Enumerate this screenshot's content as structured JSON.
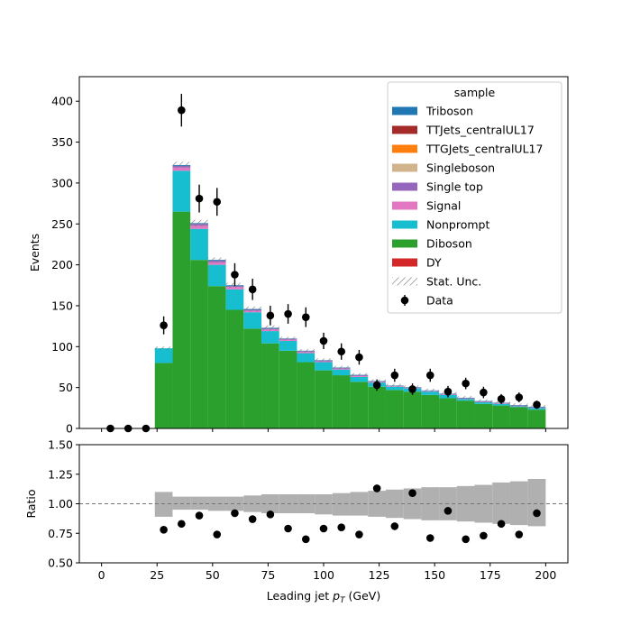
{
  "chart_data": [
    {
      "type": "bar",
      "subtype": "stacked-histogram-with-data-points",
      "xlabel": "Leading jet  p_T (GeV)",
      "ylabel": "Events",
      "xlim": [
        -10,
        210
      ],
      "ylim": [
        0,
        430
      ],
      "xticks": [
        0,
        25,
        50,
        75,
        100,
        125,
        150,
        175,
        200
      ],
      "yticks": [
        0,
        50,
        100,
        150,
        200,
        250,
        300,
        350,
        400
      ],
      "bin_edges": [
        24,
        32,
        40,
        48,
        56,
        64,
        72,
        80,
        88,
        96,
        104,
        112,
        120,
        128,
        136,
        144,
        152,
        160,
        168,
        176,
        184,
        192,
        200
      ],
      "legend": {
        "title": "sample",
        "placement": "top-right",
        "entries": [
          "Triboson",
          "TTJets_centralUL17",
          "TTGJets_centralUL17",
          "Singleboson",
          "Single top",
          "Signal",
          "Nonprompt",
          "Diboson",
          "DY",
          "Stat. Unc.",
          "Data"
        ]
      },
      "series": [
        {
          "name": "DY",
          "color": "#d62728",
          "values": [
            0,
            0,
            0,
            0,
            0,
            0,
            0,
            0,
            0,
            0,
            0,
            0,
            0,
            0,
            0,
            0,
            0,
            0,
            0,
            0,
            0,
            0
          ]
        },
        {
          "name": "Diboson",
          "color": "#2ca02c",
          "values": [
            80,
            265,
            206,
            174,
            145,
            122,
            104,
            95,
            81,
            71,
            65,
            57,
            51,
            47,
            45,
            41,
            37,
            34,
            30,
            28,
            26,
            23
          ]
        },
        {
          "name": "Nonprompt",
          "color": "#17becf",
          "values": [
            18,
            50,
            38,
            26,
            25,
            20,
            15,
            12,
            11,
            10,
            7,
            6,
            5,
            4,
            4,
            4,
            4,
            2,
            2,
            2,
            1,
            2
          ]
        },
        {
          "name": "Signal",
          "color": "#e377c2",
          "values": [
            0,
            4,
            4,
            3,
            3,
            2,
            2,
            1.5,
            1.5,
            1,
            1,
            1,
            1,
            0.5,
            0.5,
            0.5,
            0.5,
            0.5,
            0.5,
            0.5,
            0.5,
            0.5
          ]
        },
        {
          "name": "Single top",
          "color": "#9467bd",
          "values": [
            0,
            2,
            2,
            2,
            1,
            1,
            1,
            1,
            1,
            1,
            1,
            1,
            0.5,
            0.5,
            0.5,
            0.5,
            0.5,
            0.5,
            0.5,
            0.5,
            0.5,
            0.5
          ]
        },
        {
          "name": "Singleboson",
          "color": "#d2b48c",
          "values": [
            0,
            0,
            0,
            0,
            0,
            0,
            0,
            0,
            0,
            0,
            0,
            0,
            0,
            0,
            0,
            0,
            0,
            0,
            0,
            0,
            0,
            0
          ]
        },
        {
          "name": "TTGJets_centralUL17",
          "color": "#ff7f0e",
          "values": [
            0,
            0,
            0,
            0,
            0,
            0,
            0,
            0,
            0,
            0,
            0,
            0,
            0,
            0,
            0,
            0,
            0,
            0,
            0,
            0,
            0,
            0
          ]
        },
        {
          "name": "TTJets_centralUL17",
          "color": "#a52a2a",
          "values": [
            0,
            0,
            0,
            0,
            0,
            0,
            0,
            0,
            0,
            0,
            0,
            0,
            0,
            0,
            0,
            0,
            0,
            0,
            0,
            0,
            0,
            0
          ]
        },
        {
          "name": "Triboson",
          "color": "#1f77b4",
          "values": [
            0,
            1,
            1,
            1,
            1,
            1,
            1,
            0.5,
            0.5,
            0.5,
            0.5,
            0.5,
            0.5,
            0.5,
            0.5,
            0.5,
            0.5,
            0.5,
            0.5,
            0.5,
            0.5,
            0.5
          ]
        }
      ],
      "stat_unc": [
        2,
        4,
        4,
        3,
        3,
        3,
        3,
        2,
        2,
        2,
        2,
        2,
        2,
        2,
        2,
        2,
        2,
        2,
        2,
        2,
        2,
        2
      ],
      "data_points": {
        "name": "Data",
        "x": [
          4,
          12,
          20,
          28,
          36,
          44,
          52,
          60,
          68,
          76,
          84,
          92,
          100,
          108,
          116,
          124,
          132,
          140,
          148,
          156,
          164,
          172,
          180,
          188,
          196
        ],
        "y": [
          0,
          0,
          0,
          126,
          389,
          281,
          277,
          188,
          170,
          138,
          140,
          136,
          107,
          94,
          87,
          53,
          65,
          48,
          65,
          45,
          55,
          44,
          36,
          38,
          29
        ],
        "yerr": [
          0,
          0,
          0,
          11,
          20,
          17,
          17,
          14,
          13,
          12,
          12,
          12,
          10,
          10,
          9,
          7,
          8,
          7,
          8,
          7,
          7,
          7,
          6,
          6,
          5
        ]
      }
    },
    {
      "type": "scatter",
      "subtype": "ratio-panel",
      "xlabel": "Leading jet  p_T (GeV)",
      "ylabel": "Ratio",
      "xlim": [
        -10,
        210
      ],
      "ylim": [
        0.5,
        1.5
      ],
      "xticks": [
        0,
        25,
        50,
        75,
        100,
        125,
        150,
        175,
        200
      ],
      "yticks": [
        0.5,
        0.75,
        1.0,
        1.25,
        1.5
      ],
      "reference_line": 1.0,
      "unc_band": {
        "bin_edges": [
          24,
          32,
          40,
          48,
          56,
          64,
          72,
          80,
          88,
          96,
          104,
          112,
          120,
          128,
          136,
          144,
          152,
          160,
          168,
          176,
          184,
          192,
          200
        ],
        "low": [
          0.89,
          0.95,
          0.95,
          0.94,
          0.94,
          0.93,
          0.92,
          0.92,
          0.92,
          0.91,
          0.9,
          0.9,
          0.89,
          0.88,
          0.87,
          0.86,
          0.86,
          0.85,
          0.84,
          0.83,
          0.82,
          0.81
        ],
        "high": [
          1.1,
          1.06,
          1.06,
          1.06,
          1.06,
          1.07,
          1.08,
          1.08,
          1.08,
          1.08,
          1.09,
          1.1,
          1.11,
          1.12,
          1.13,
          1.14,
          1.14,
          1.15,
          1.16,
          1.18,
          1.19,
          1.21
        ]
      },
      "points": {
        "x": [
          28,
          36,
          44,
          52,
          60,
          68,
          76,
          84,
          92,
          100,
          108,
          116,
          124,
          132,
          140,
          148,
          156,
          164,
          172,
          180,
          188,
          196
        ],
        "y": [
          0.78,
          0.83,
          0.9,
          0.74,
          0.92,
          0.87,
          0.91,
          0.79,
          0.7,
          0.79,
          0.8,
          0.74,
          1.13,
          0.81,
          1.09,
          0.71,
          0.94,
          0.7,
          0.73,
          0.83,
          0.74,
          0.92
        ]
      }
    }
  ]
}
